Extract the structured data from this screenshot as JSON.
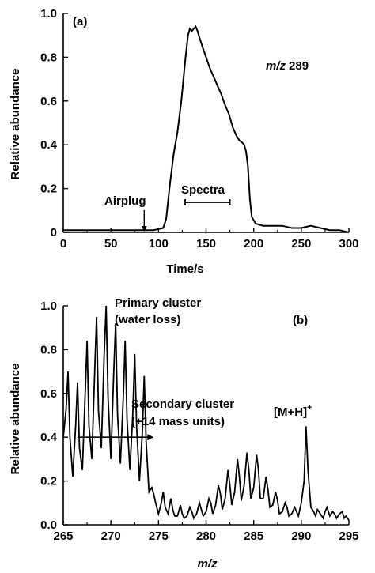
{
  "chart_data": [
    {
      "type": "line",
      "panel_label": "(a)",
      "xlabel": "Time/s",
      "ylabel": "Relative abundance",
      "xlim": [
        0,
        300
      ],
      "ylim": [
        0,
        1.0
      ],
      "x_ticks": [
        "0",
        "50",
        "100",
        "150",
        "200",
        "250",
        "300"
      ],
      "y_ticks": [
        "0",
        "0.2",
        "0.4",
        "0.6",
        "0.8",
        "1.0"
      ],
      "annotations": {
        "mz_prefix": "m/z",
        "mz_value": "289",
        "airplug": "Airplug",
        "spectra": "Spectra"
      },
      "airplug_time": 85,
      "spectra_range": [
        128,
        175
      ],
      "series": [
        {
          "x": [
            0,
            20,
            40,
            60,
            80,
            95,
            105,
            108,
            112,
            116,
            120,
            124,
            128,
            131,
            133,
            135,
            137,
            139,
            141,
            143,
            146,
            150,
            154,
            158,
            162,
            166,
            170,
            174,
            178,
            182,
            185,
            188,
            190,
            192,
            194,
            196,
            198,
            202,
            210,
            220,
            230,
            240,
            250,
            260,
            270,
            280,
            290,
            300
          ],
          "y": [
            0.01,
            0.01,
            0.01,
            0.01,
            0.01,
            0.01,
            0.02,
            0.06,
            0.22,
            0.36,
            0.46,
            0.6,
            0.78,
            0.9,
            0.93,
            0.92,
            0.93,
            0.94,
            0.92,
            0.89,
            0.85,
            0.8,
            0.75,
            0.71,
            0.67,
            0.63,
            0.58,
            0.54,
            0.48,
            0.44,
            0.42,
            0.41,
            0.4,
            0.37,
            0.3,
            0.15,
            0.07,
            0.04,
            0.03,
            0.03,
            0.03,
            0.02,
            0.02,
            0.03,
            0.02,
            0.01,
            0.01,
            0.0
          ]
        }
      ]
    },
    {
      "type": "line",
      "panel_label": "(b)",
      "xlabel": "m/z",
      "ylabel": "Relative abundance",
      "xlim": [
        265,
        295
      ],
      "ylim": [
        0,
        1.0
      ],
      "x_ticks": [
        "265",
        "270",
        "275",
        "280",
        "285",
        "290",
        "295"
      ],
      "y_ticks": [
        "0.0",
        "0.2",
        "0.4",
        "0.6",
        "0.8",
        "1.0"
      ],
      "annotations": {
        "primary_line1": "Primary cluster",
        "primary_line2": "(water loss)",
        "secondary_line1": "Secondary cluster",
        "secondary_line2": "(+14 mass units)",
        "mh_label": "[M+H]",
        "mh_sup": "+"
      },
      "arrow_range": [
        266.5,
        274.5
      ],
      "arrow_y": 0.4,
      "series": [
        {
          "x": [
            265.0,
            265.3,
            265.5,
            265.7,
            266.0,
            266.3,
            266.5,
            266.7,
            267.0,
            267.3,
            267.5,
            267.7,
            268.0,
            268.3,
            268.5,
            268.7,
            269.0,
            269.3,
            269.5,
            269.7,
            270.0,
            270.3,
            270.5,
            270.7,
            271.0,
            271.3,
            271.5,
            271.7,
            272.0,
            272.3,
            272.5,
            272.7,
            273.0,
            273.3,
            273.5,
            273.7,
            274.0,
            274.3,
            274.5,
            274.7,
            275.0,
            275.3,
            275.5,
            275.7,
            276.0,
            276.3,
            276.5,
            276.7,
            277.0,
            277.3,
            277.5,
            277.7,
            278.0,
            278.3,
            278.5,
            278.7,
            279.0,
            279.3,
            279.5,
            279.7,
            280.0,
            280.3,
            280.5,
            280.7,
            281.0,
            281.3,
            281.5,
            281.7,
            282.0,
            282.3,
            282.5,
            282.7,
            283.0,
            283.3,
            283.5,
            283.7,
            284.0,
            284.3,
            284.5,
            284.7,
            285.0,
            285.3,
            285.5,
            285.7,
            286.0,
            286.3,
            286.5,
            286.7,
            287.0,
            287.3,
            287.5,
            287.7,
            288.0,
            288.3,
            288.5,
            288.7,
            289.0,
            289.3,
            289.5,
            289.7,
            290.0,
            290.3,
            290.5,
            290.7,
            291.0,
            291.3,
            291.5,
            291.7,
            292.0,
            292.3,
            292.5,
            292.7,
            293.0,
            293.3,
            293.5,
            293.7,
            294.0,
            294.3,
            294.5,
            294.7,
            295.0
          ],
          "y": [
            0.4,
            0.53,
            0.7,
            0.4,
            0.22,
            0.45,
            0.65,
            0.35,
            0.25,
            0.6,
            0.84,
            0.45,
            0.3,
            0.7,
            0.95,
            0.52,
            0.35,
            0.78,
            1.0,
            0.58,
            0.3,
            0.7,
            0.92,
            0.5,
            0.28,
            0.58,
            0.84,
            0.48,
            0.25,
            0.5,
            0.78,
            0.45,
            0.2,
            0.42,
            0.68,
            0.38,
            0.15,
            0.17,
            0.14,
            0.1,
            0.05,
            0.1,
            0.15,
            0.08,
            0.05,
            0.12,
            0.07,
            0.04,
            0.04,
            0.09,
            0.05,
            0.03,
            0.04,
            0.08,
            0.06,
            0.03,
            0.05,
            0.1,
            0.07,
            0.04,
            0.06,
            0.12,
            0.1,
            0.05,
            0.09,
            0.18,
            0.14,
            0.07,
            0.12,
            0.25,
            0.18,
            0.09,
            0.15,
            0.3,
            0.22,
            0.11,
            0.18,
            0.33,
            0.25,
            0.12,
            0.17,
            0.32,
            0.25,
            0.12,
            0.12,
            0.22,
            0.16,
            0.08,
            0.09,
            0.15,
            0.11,
            0.05,
            0.06,
            0.1,
            0.08,
            0.04,
            0.05,
            0.08,
            0.06,
            0.04,
            0.1,
            0.2,
            0.45,
            0.25,
            0.08,
            0.06,
            0.04,
            0.07,
            0.05,
            0.03,
            0.06,
            0.08,
            0.04,
            0.06,
            0.05,
            0.03,
            0.05,
            0.06,
            0.03,
            0.04,
            0.02
          ]
        }
      ]
    }
  ]
}
